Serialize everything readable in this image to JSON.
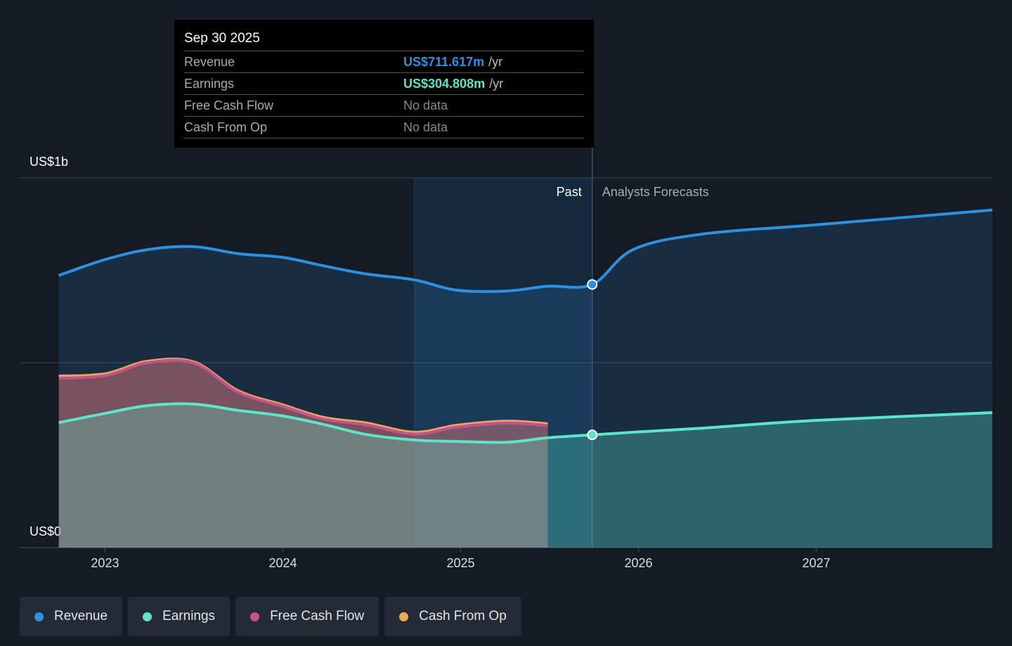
{
  "chart_data": {
    "type": "line",
    "x": [
      2022.74,
      2023,
      2023.24,
      2023.5,
      2023.75,
      2024,
      2024.23,
      2024.47,
      2024.74,
      2024.98,
      2025.26,
      2025.49,
      2025.74,
      2025.97,
      2026.36,
      2027,
      2027.99
    ],
    "series": [
      {
        "name": "Revenue",
        "color": "#2e90e0",
        "values": [
          736,
          779,
          806,
          814,
          795,
          785,
          762,
          740,
          724,
          696,
          694,
          707,
          711.617,
          806,
          848,
          873,
          913
        ]
      },
      {
        "name": "Earnings",
        "color": "#5fe3cb",
        "values": [
          338,
          363,
          384,
          388,
          371,
          356,
          333,
          306,
          291,
          287,
          285,
          297,
          304.808,
          312,
          323,
          344,
          365
        ]
      },
      {
        "name": "Free Cash Flow",
        "color": "#c4528d",
        "values": [
          458,
          465,
          500,
          499,
          420,
          382,
          347,
          332,
          307,
          326,
          337,
          330,
          null,
          null,
          null,
          null,
          null
        ]
      },
      {
        "name": "Cash From Op",
        "color": "#e9a85a",
        "values": [
          464,
          470,
          504,
          502,
          424,
          386,
          352,
          337,
          312,
          331,
          342,
          335,
          null,
          null,
          null,
          null,
          null
        ]
      }
    ],
    "xlim": [
      2022.52,
      2027.99
    ],
    "xticks": [
      2023,
      2024,
      2025,
      2026,
      2027
    ],
    "ylim": [
      0,
      1000
    ],
    "yticks": [
      {
        "value": 0,
        "label": "US$0"
      },
      {
        "value": 500,
        "label": null
      },
      {
        "value": 1000,
        "label": "US$1b"
      }
    ],
    "grid": true,
    "past_end": 2025.74,
    "highlight_start": 2024.74,
    "past_label": "Past",
    "forecast_label": "Analysts Forecasts",
    "tooltip": {
      "date": "Sep 30 2025",
      "rows": [
        {
          "label": "Revenue",
          "value": "US$711.617m",
          "unit": "/yr"
        },
        {
          "label": "Earnings",
          "value": "US$304.808m",
          "unit": "/yr"
        },
        {
          "label": "Free Cash Flow",
          "value": "No data"
        },
        {
          "label": "Cash From Op",
          "value": "No data"
        }
      ]
    }
  }
}
